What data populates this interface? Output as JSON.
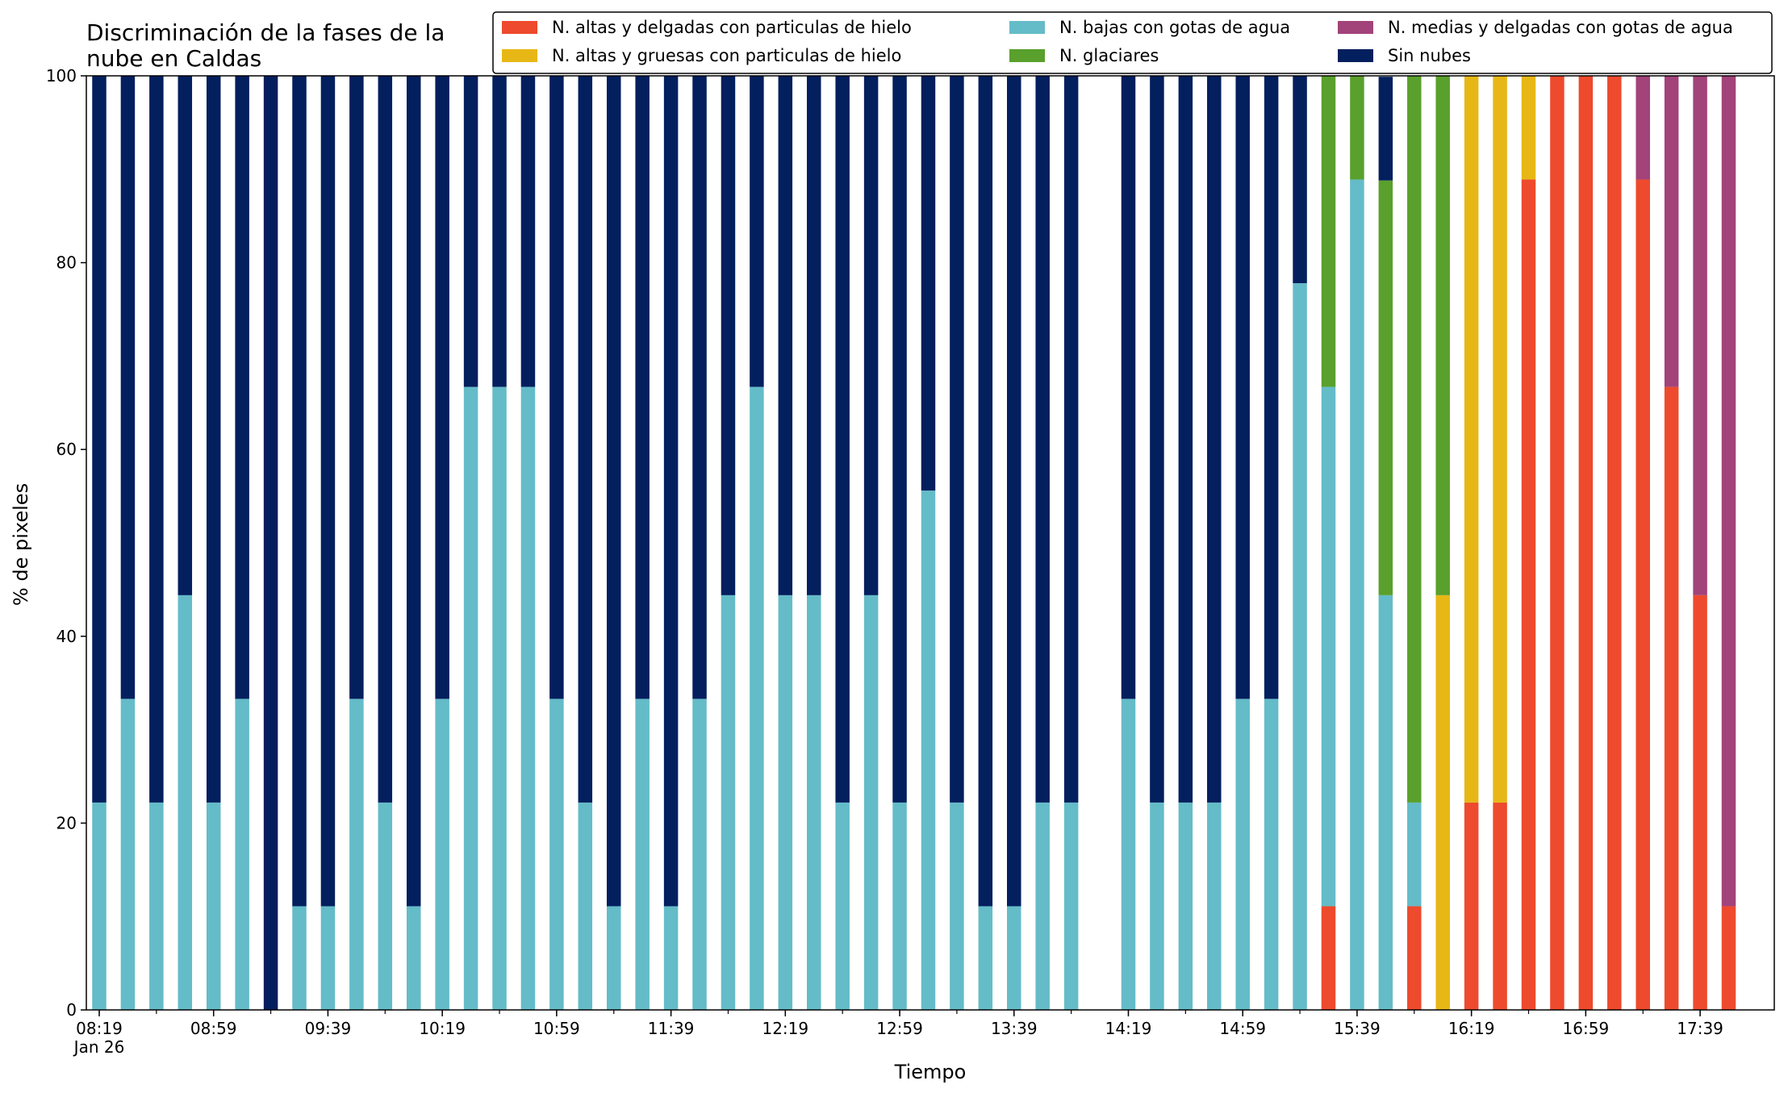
{
  "chart_data": {
    "type": "bar",
    "stacked": true,
    "title": "Discriminación de la fases de la\nnube en Caldas",
    "xlabel": "Tiempo",
    "ylabel": "% de pixeles",
    "ylim": [
      0,
      100
    ],
    "yticks": [
      "0",
      "20",
      "40",
      "60",
      "80",
      "100"
    ],
    "xtick_labels": [
      {
        "index": 0,
        "label": "08:19",
        "sublabel": "Jan 26"
      },
      {
        "index": 4,
        "label": "08:59"
      },
      {
        "index": 8,
        "label": "09:39"
      },
      {
        "index": 12,
        "label": "10:19"
      },
      {
        "index": 16,
        "label": "10:59"
      },
      {
        "index": 20,
        "label": "11:39"
      },
      {
        "index": 24,
        "label": "12:19"
      },
      {
        "index": 28,
        "label": "12:59"
      },
      {
        "index": 32,
        "label": "13:39"
      },
      {
        "index": 36,
        "label": "14:19"
      },
      {
        "index": 40,
        "label": "14:59"
      },
      {
        "index": 44,
        "label": "15:39"
      },
      {
        "index": 48,
        "label": "16:19"
      },
      {
        "index": 52,
        "label": "16:59"
      },
      {
        "index": 56,
        "label": "17:39"
      }
    ],
    "x": [
      "08:19",
      "08:29",
      "08:39",
      "08:49",
      "08:59",
      "09:09",
      "09:19",
      "09:29",
      "09:39",
      "09:49",
      "09:59",
      "10:09",
      "10:19",
      "10:29",
      "10:39",
      "10:49",
      "10:59",
      "11:09",
      "11:19",
      "11:29",
      "11:39",
      "11:49",
      "11:59",
      "12:09",
      "12:19",
      "12:29",
      "12:39",
      "12:49",
      "12:59",
      "13:09",
      "13:19",
      "13:29",
      "13:39",
      "13:49",
      "13:59",
      "14:09",
      "14:19",
      "14:29",
      "14:39",
      "14:49",
      "14:59",
      "15:09",
      "15:19",
      "15:29",
      "15:39",
      "15:49",
      "15:59",
      "16:09",
      "16:19",
      "16:29",
      "16:39",
      "16:49",
      "16:59",
      "17:09",
      "17:19",
      "17:29",
      "17:39",
      "17:49"
    ],
    "legend_position": "top-right",
    "series": [
      {
        "name": "N. altas y delgadas con particulas de hielo",
        "color": "#ee4a2d",
        "values": [
          0,
          0,
          0,
          0,
          0,
          0,
          0,
          0,
          0,
          0,
          0,
          0,
          0,
          0,
          0,
          0,
          0,
          0,
          0,
          0,
          0,
          0,
          0,
          0,
          0,
          0,
          0,
          0,
          0,
          0,
          0,
          0,
          0,
          0,
          0,
          0,
          0,
          0,
          0,
          0,
          0,
          0,
          0,
          11.1,
          0,
          0,
          11.1,
          0,
          22.2,
          22.2,
          88.9,
          100,
          100,
          100,
          88.9,
          66.7,
          44.4,
          11.1
        ]
      },
      {
        "name": "N. altas y gruesas con particulas de hielo",
        "color": "#e7b716",
        "values": [
          0,
          0,
          0,
          0,
          0,
          0,
          0,
          0,
          0,
          0,
          0,
          0,
          0,
          0,
          0,
          0,
          0,
          0,
          0,
          0,
          0,
          0,
          0,
          0,
          0,
          0,
          0,
          0,
          0,
          0,
          0,
          0,
          0,
          0,
          0,
          0,
          0,
          0,
          0,
          0,
          0,
          0,
          0,
          0,
          0,
          0,
          0,
          44.4,
          77.8,
          77.8,
          11.1,
          0,
          0,
          0,
          0,
          0,
          0,
          0
        ]
      },
      {
        "name": "N. bajas con gotas de agua",
        "color": "#64bcc8",
        "values": [
          22.2,
          33.3,
          22.2,
          44.4,
          22.2,
          33.3,
          0,
          11.1,
          11.1,
          33.3,
          22.2,
          11.1,
          33.3,
          66.7,
          66.7,
          66.7,
          33.3,
          22.2,
          11.1,
          33.3,
          11.1,
          33.3,
          44.4,
          66.7,
          44.4,
          44.4,
          22.2,
          44.4,
          22.2,
          55.6,
          22.2,
          11.1,
          11.1,
          22.2,
          22.2,
          0,
          33.3,
          22.2,
          22.2,
          22.2,
          33.3,
          33.3,
          77.8,
          55.6,
          88.9,
          44.4,
          11.1,
          0,
          0,
          0,
          0,
          0,
          0,
          0,
          0,
          0,
          0,
          0
        ]
      },
      {
        "name": "N. glaciares",
        "color": "#5aa02c",
        "values": [
          0,
          0,
          0,
          0,
          0,
          0,
          0,
          0,
          0,
          0,
          0,
          0,
          0,
          0,
          0,
          0,
          0,
          0,
          0,
          0,
          0,
          0,
          0,
          0,
          0,
          0,
          0,
          0,
          0,
          0,
          0,
          0,
          0,
          0,
          0,
          0,
          0,
          0,
          0,
          0,
          0,
          0,
          0,
          33.3,
          11.1,
          44.4,
          77.8,
          55.6,
          0,
          0,
          0,
          0,
          0,
          0,
          0,
          0,
          0,
          0
        ]
      },
      {
        "name": "N. medias y delgadas con gotas de agua",
        "color": "#a2437a",
        "values": [
          0,
          0,
          0,
          0,
          0,
          0,
          0,
          0,
          0,
          0,
          0,
          0,
          0,
          0,
          0,
          0,
          0,
          0,
          0,
          0,
          0,
          0,
          0,
          0,
          0,
          0,
          0,
          0,
          0,
          0,
          0,
          0,
          0,
          0,
          0,
          0,
          0,
          0,
          0,
          0,
          0,
          0,
          0,
          0,
          0,
          0,
          0,
          0,
          0,
          0,
          0,
          0,
          0,
          0,
          11.1,
          33.3,
          55.6,
          88.9
        ]
      },
      {
        "name": "Sin nubes",
        "color": "#031f5e",
        "values": [
          77.8,
          66.7,
          77.8,
          55.6,
          77.8,
          66.7,
          100,
          88.9,
          88.9,
          66.7,
          77.8,
          88.9,
          66.7,
          33.3,
          33.3,
          33.3,
          66.7,
          77.8,
          88.9,
          66.7,
          88.9,
          66.7,
          55.6,
          33.3,
          55.6,
          55.6,
          77.8,
          55.6,
          77.8,
          44.4,
          77.8,
          88.9,
          88.9,
          77.8,
          77.8,
          0,
          66.7,
          77.8,
          77.8,
          77.8,
          66.7,
          66.7,
          22.2,
          0,
          0,
          11.1,
          0,
          0,
          0,
          0,
          0,
          0,
          0,
          0,
          0,
          0,
          0,
          0
        ]
      }
    ],
    "stack_order": [
      0,
      1,
      2,
      3,
      4,
      5
    ]
  }
}
